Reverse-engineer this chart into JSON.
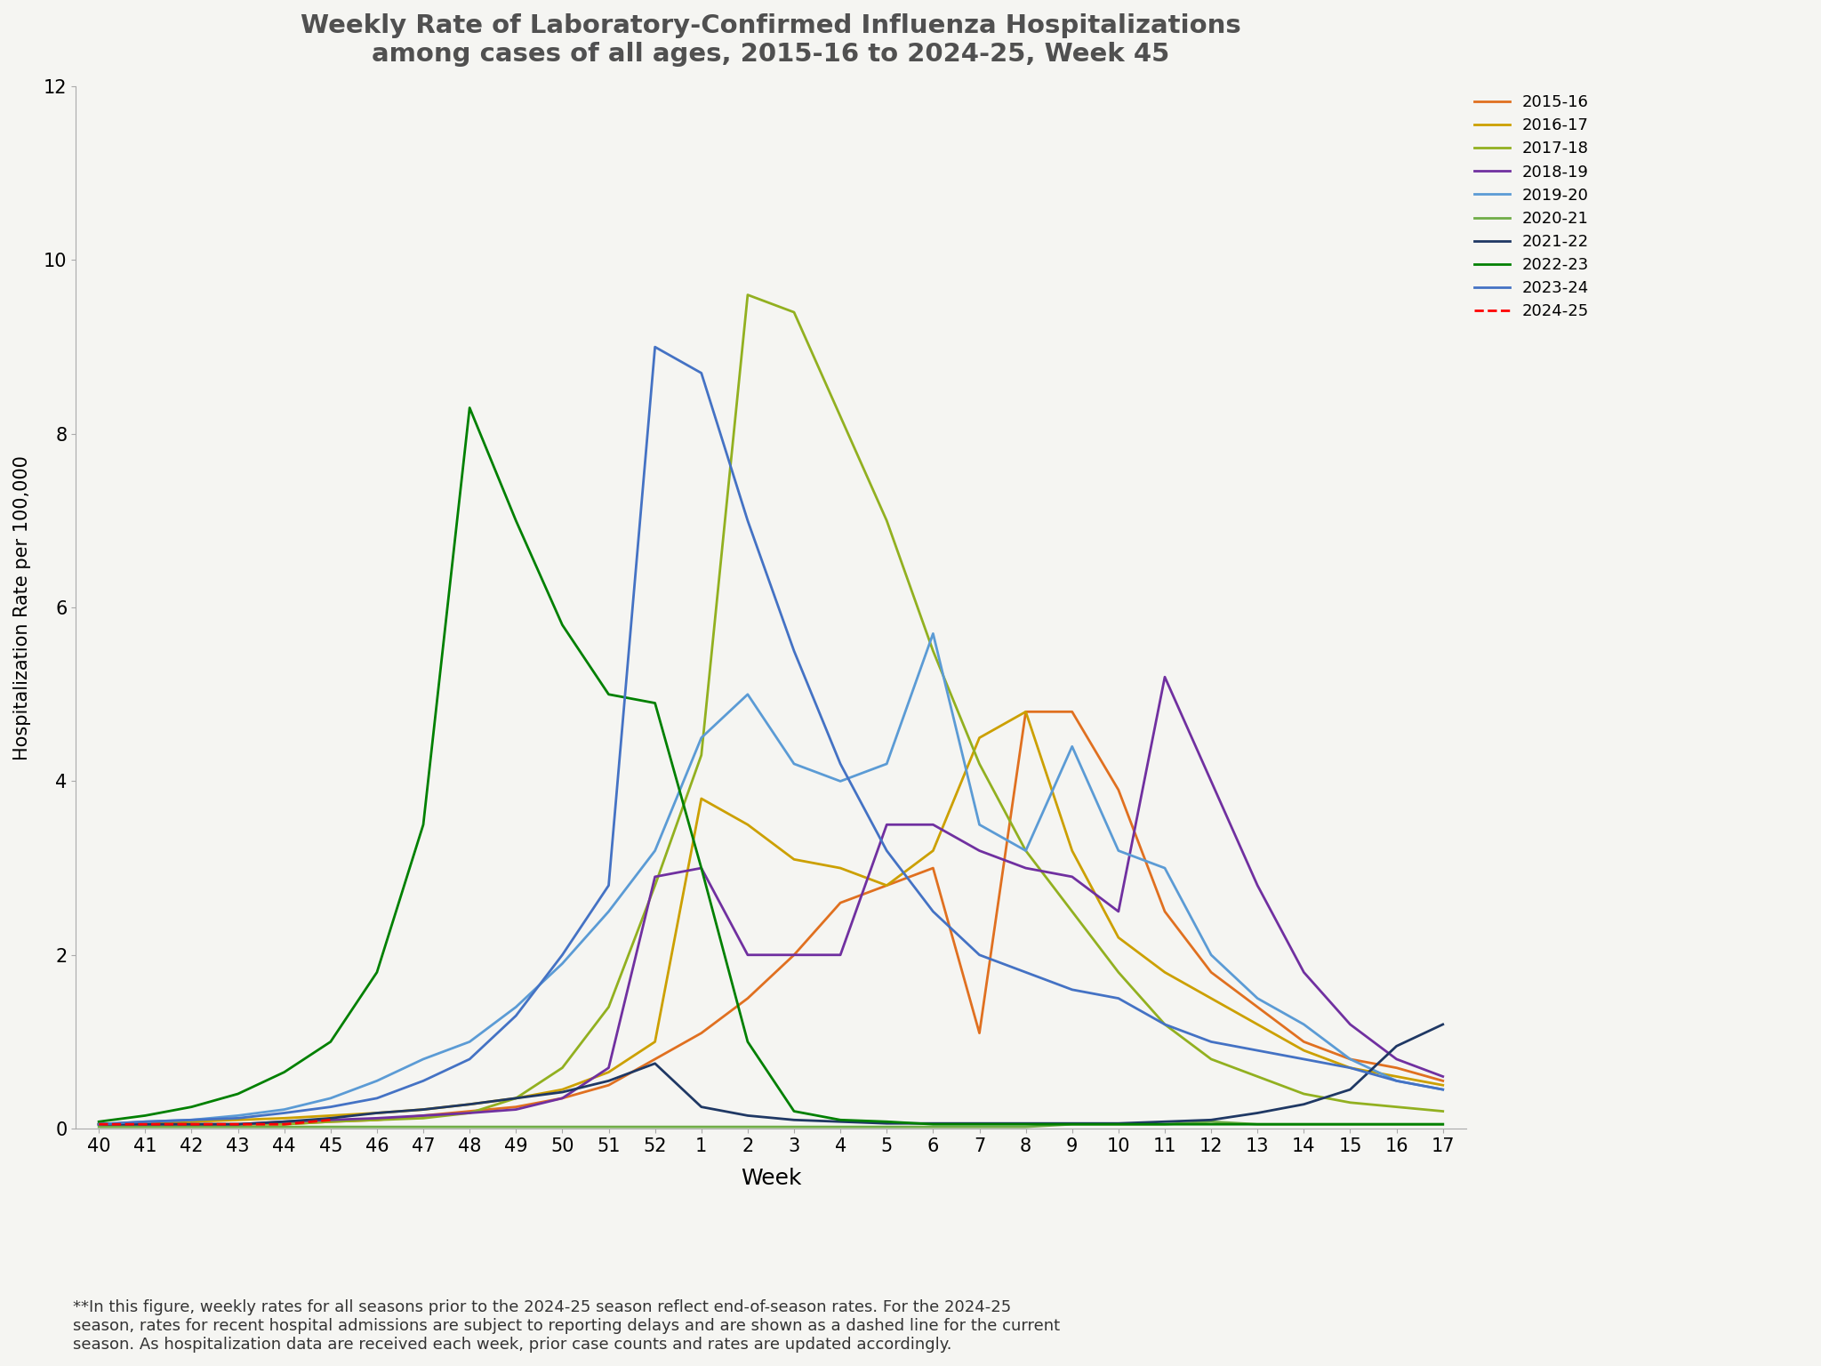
{
  "title": "Weekly Rate of Laboratory-Confirmed Influenza Hospitalizations\namong cases of all ages, 2015-16 to 2024-25, Week 45",
  "xlabel": "Week",
  "ylabel": "Hospitalization Rate per 100,000",
  "ylim": [
    0,
    12
  ],
  "yticks": [
    0,
    2,
    4,
    6,
    8,
    10,
    12
  ],
  "background_color": "#f5f5f2",
  "footnote": "**In this figure, weekly rates for all seasons prior to the 2024-25 season reflect end-of-season rates. For the 2024-25\nseason, rates for recent hospital admissions are subject to reporting delays and are shown as a dashed line for the current\nseason. As hospitalization data are received each week, prior case counts and rates are updated accordingly.",
  "weeks": [
    40,
    41,
    42,
    43,
    44,
    45,
    46,
    47,
    48,
    49,
    50,
    51,
    52,
    1,
    2,
    3,
    4,
    5,
    6,
    7,
    8,
    9,
    10,
    11,
    12,
    13,
    14,
    15,
    16,
    17
  ],
  "seasons": {
    "2015-16": {
      "color": "#E07020",
      "dashed": false,
      "data": [
        0.05,
        0.05,
        0.05,
        0.05,
        0.05,
        0.08,
        0.1,
        0.15,
        0.2,
        0.25,
        0.35,
        0.5,
        0.8,
        1.1,
        1.5,
        2.0,
        2.6,
        2.8,
        3.0,
        1.1,
        4.8,
        4.8,
        3.9,
        2.5,
        1.8,
        1.4,
        1.0,
        0.8,
        0.7,
        0.55
      ]
    },
    "2016-17": {
      "color": "#CCA000",
      "dashed": false,
      "data": [
        0.05,
        0.05,
        0.08,
        0.1,
        0.12,
        0.15,
        0.18,
        0.22,
        0.28,
        0.35,
        0.45,
        0.65,
        1.0,
        3.8,
        3.5,
        3.1,
        3.0,
        2.8,
        3.2,
        4.5,
        4.8,
        3.2,
        2.2,
        1.8,
        1.5,
        1.2,
        0.9,
        0.7,
        0.6,
        0.5
      ]
    },
    "2017-18": {
      "color": "#92B020",
      "dashed": false,
      "data": [
        0.05,
        0.05,
        0.05,
        0.05,
        0.05,
        0.08,
        0.1,
        0.12,
        0.18,
        0.35,
        0.7,
        1.4,
        2.8,
        4.3,
        9.6,
        9.4,
        8.2,
        7.0,
        5.5,
        4.2,
        3.2,
        2.5,
        1.8,
        1.2,
        0.8,
        0.6,
        0.4,
        0.3,
        0.25,
        0.2
      ]
    },
    "2018-19": {
      "color": "#7030A0",
      "dashed": false,
      "data": [
        0.05,
        0.05,
        0.05,
        0.05,
        0.08,
        0.1,
        0.12,
        0.15,
        0.18,
        0.22,
        0.35,
        0.7,
        2.9,
        3.0,
        2.0,
        2.0,
        2.0,
        3.5,
        3.5,
        3.2,
        3.0,
        2.9,
        2.5,
        5.2,
        4.0,
        2.8,
        1.8,
        1.2,
        0.8,
        0.6
      ]
    },
    "2019-20": {
      "color": "#5B9BD5",
      "dashed": false,
      "data": [
        0.05,
        0.08,
        0.1,
        0.15,
        0.22,
        0.35,
        0.55,
        0.8,
        1.0,
        1.4,
        1.9,
        2.5,
        3.2,
        4.5,
        5.0,
        4.2,
        4.0,
        4.2,
        5.7,
        3.5,
        3.2,
        4.4,
        3.2,
        3.0,
        2.0,
        1.5,
        1.2,
        0.8,
        0.55,
        0.45
      ]
    },
    "2020-21": {
      "color": "#70AD47",
      "dashed": false,
      "data": [
        0.02,
        0.02,
        0.02,
        0.02,
        0.02,
        0.02,
        0.02,
        0.02,
        0.02,
        0.02,
        0.02,
        0.02,
        0.02,
        0.02,
        0.02,
        0.02,
        0.02,
        0.02,
        0.02,
        0.02,
        0.02,
        0.05,
        0.05,
        0.05,
        0.08,
        0.05,
        0.05,
        0.05,
        0.05,
        0.05
      ]
    },
    "2021-22": {
      "color": "#1F3864",
      "dashed": false,
      "data": [
        0.05,
        0.05,
        0.05,
        0.05,
        0.08,
        0.12,
        0.18,
        0.22,
        0.28,
        0.35,
        0.42,
        0.55,
        0.75,
        0.25,
        0.15,
        0.1,
        0.08,
        0.06,
        0.06,
        0.06,
        0.06,
        0.06,
        0.06,
        0.08,
        0.1,
        0.18,
        0.28,
        0.45,
        0.95,
        1.2
      ]
    },
    "2022-23": {
      "color": "#008000",
      "dashed": false,
      "data": [
        0.08,
        0.15,
        0.25,
        0.4,
        0.65,
        1.0,
        1.8,
        3.5,
        8.3,
        7.0,
        5.8,
        5.0,
        4.9,
        3.0,
        1.0,
        0.2,
        0.1,
        0.08,
        0.05,
        0.05,
        0.05,
        0.05,
        0.05,
        0.05,
        0.05,
        0.05,
        0.05,
        0.05,
        0.05,
        0.05
      ]
    },
    "2023-24": {
      "color": "#4472C4",
      "dashed": false,
      "data": [
        0.05,
        0.08,
        0.1,
        0.12,
        0.18,
        0.25,
        0.35,
        0.55,
        0.8,
        1.3,
        2.0,
        2.8,
        9.0,
        8.7,
        7.0,
        5.5,
        4.2,
        3.2,
        2.5,
        2.0,
        1.8,
        1.6,
        1.5,
        1.2,
        1.0,
        0.9,
        0.8,
        0.7,
        0.55,
        0.45
      ]
    },
    "2024-25": {
      "color": "#FF0000",
      "dashed": true,
      "data": [
        0.05,
        0.05,
        0.05,
        0.05,
        0.05,
        0.1,
        null,
        null,
        null,
        null,
        null,
        null,
        null,
        null,
        null,
        null,
        null,
        null,
        null,
        null,
        null,
        null,
        null,
        null,
        null,
        null,
        null,
        null,
        null,
        null
      ]
    }
  }
}
